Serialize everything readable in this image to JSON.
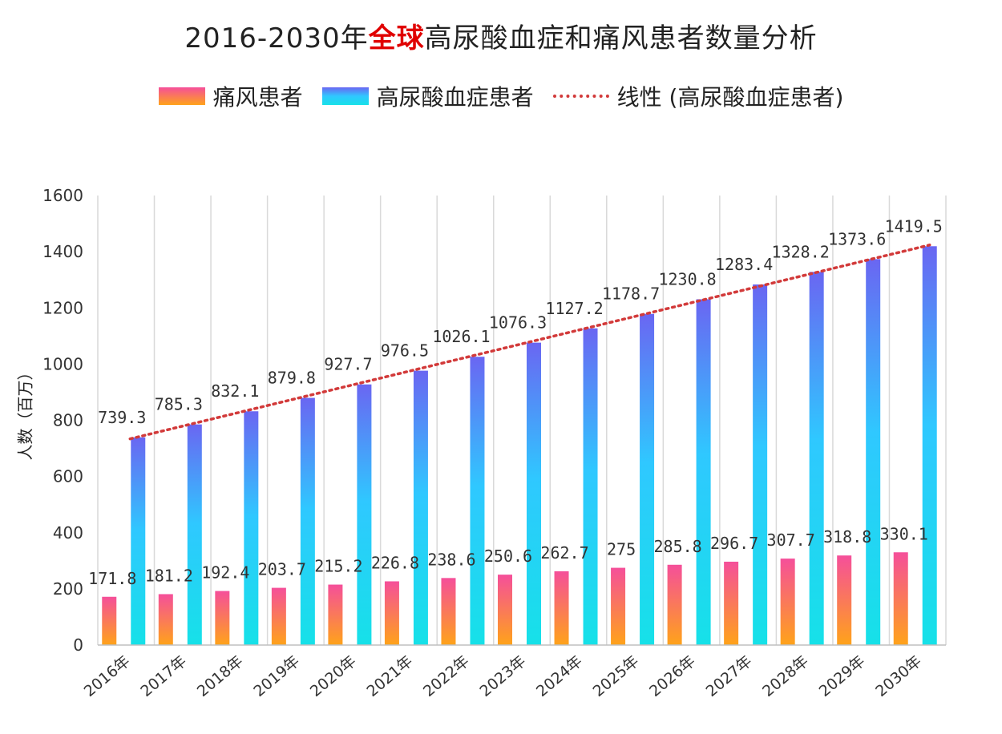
{
  "title": {
    "prefix": "2016-2030年",
    "highlight": "全球",
    "suffix": "高尿酸血症和痛风患者数量分析"
  },
  "colors": {
    "highlight": "#e00000",
    "trend": "#d23a3a",
    "gout_top": "#f54f9a",
    "gout_bottom": "#ffa31a",
    "hyper_top": "#6a66f2",
    "hyper_mid": "#2fc8ff",
    "hyper_bottom": "#16e1e8"
  },
  "legend": {
    "gout": "痛风患者",
    "hyper": "高尿酸血症患者",
    "trend": "线性 (高尿酸血症患者)"
  },
  "chart_data": {
    "type": "bar",
    "categories": [
      "2016年",
      "2017年",
      "2018年",
      "2019年",
      "2020年",
      "2021年",
      "2022年",
      "2023年",
      "2024年",
      "2025年",
      "2026年",
      "2027年",
      "2028年",
      "2029年",
      "2030年"
    ],
    "series": [
      {
        "name": "痛风患者",
        "values": [
          171.8,
          181.2,
          192.4,
          203.7,
          215.2,
          226.8,
          238.6,
          250.6,
          262.7,
          275,
          285.8,
          296.7,
          307.7,
          318.8,
          330.1
        ]
      },
      {
        "name": "高尿酸血症患者",
        "values": [
          739.3,
          785.3,
          832.1,
          879.8,
          927.7,
          976.5,
          1026.1,
          1076.3,
          1127.2,
          1178.7,
          1230.8,
          1283.4,
          1328.2,
          1373.6,
          1419.5
        ]
      }
    ],
    "trendline": {
      "name": "线性 (高尿酸血症患者)",
      "type": "linear",
      "series": "高尿酸血症患者"
    },
    "ylabel": "人数（百万）",
    "ylim": [
      0,
      1600
    ],
    "yticks": [
      0,
      200,
      400,
      600,
      800,
      1000,
      1200,
      1400,
      1600
    ],
    "grid": "vertical"
  }
}
